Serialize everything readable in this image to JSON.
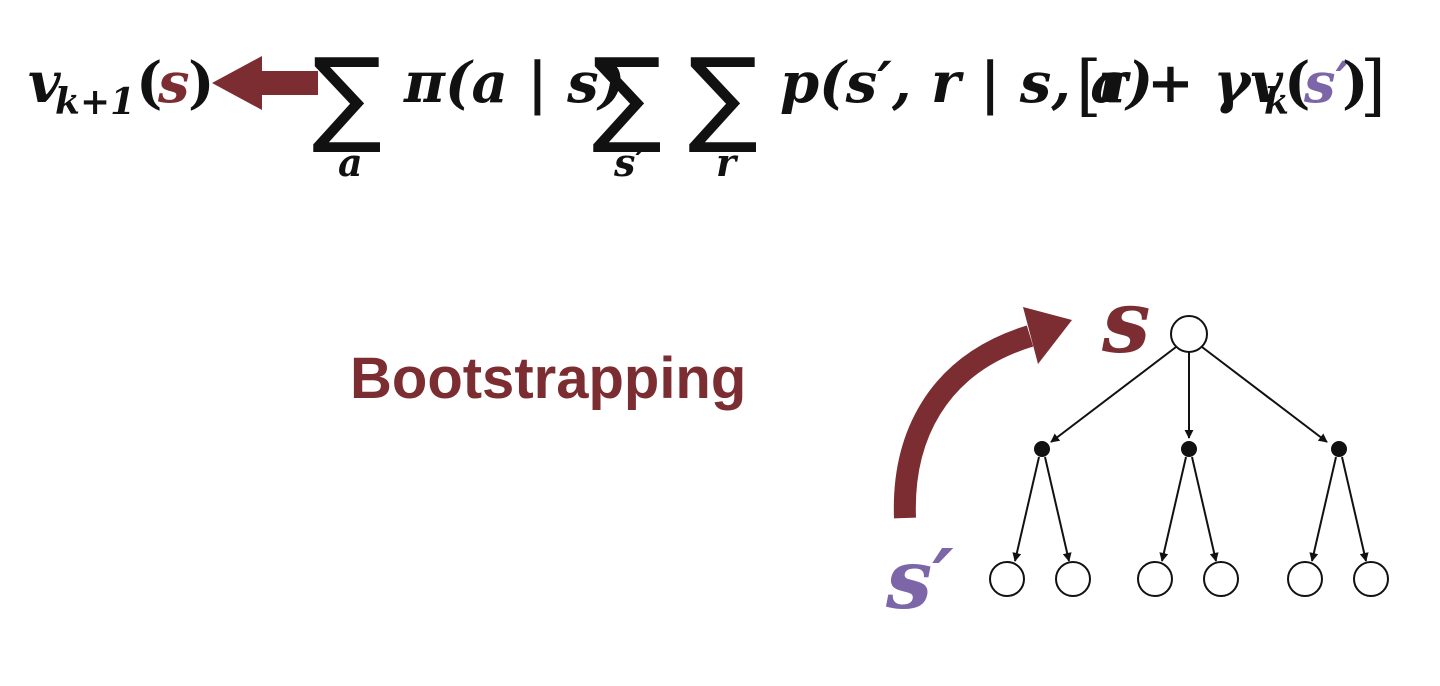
{
  "colors": {
    "maroon": "#7b2d31",
    "purple": "#7c66a8",
    "ink": "#111111"
  },
  "equation": {
    "lhs_v": "v",
    "lhs_sub": "k+1",
    "lhs_open": "(",
    "lhs_s": "s",
    "lhs_close": ")",
    "sum_symbol": "∑",
    "sum1_index": "a",
    "pi_term": "π(a | s)",
    "sum2_index": "s′",
    "sum3_index": "r",
    "p_term": "p(s′, r | s, a)",
    "bracket_open": "[",
    "r_plus_gamma": "r + γv",
    "vk_sub": "k",
    "vk_open": "(",
    "vk_s_prime": "s′",
    "vk_close": ")",
    "bracket_close": "]"
  },
  "label": {
    "text": "Bootstrapping"
  },
  "tree": {
    "root_label": "s",
    "leaf_label": "s′"
  }
}
